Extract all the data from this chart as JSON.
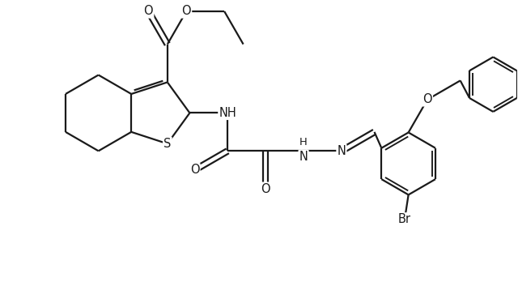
{
  "bg_color": "#ffffff",
  "line_color": "#1a1a1a",
  "line_width": 1.6,
  "font_size": 10.5,
  "figsize": [
    6.4,
    3.69
  ],
  "dpi": 100,
  "xlim": [
    -4.8,
    5.8
  ],
  "ylim": [
    -3.2,
    2.8
  ]
}
